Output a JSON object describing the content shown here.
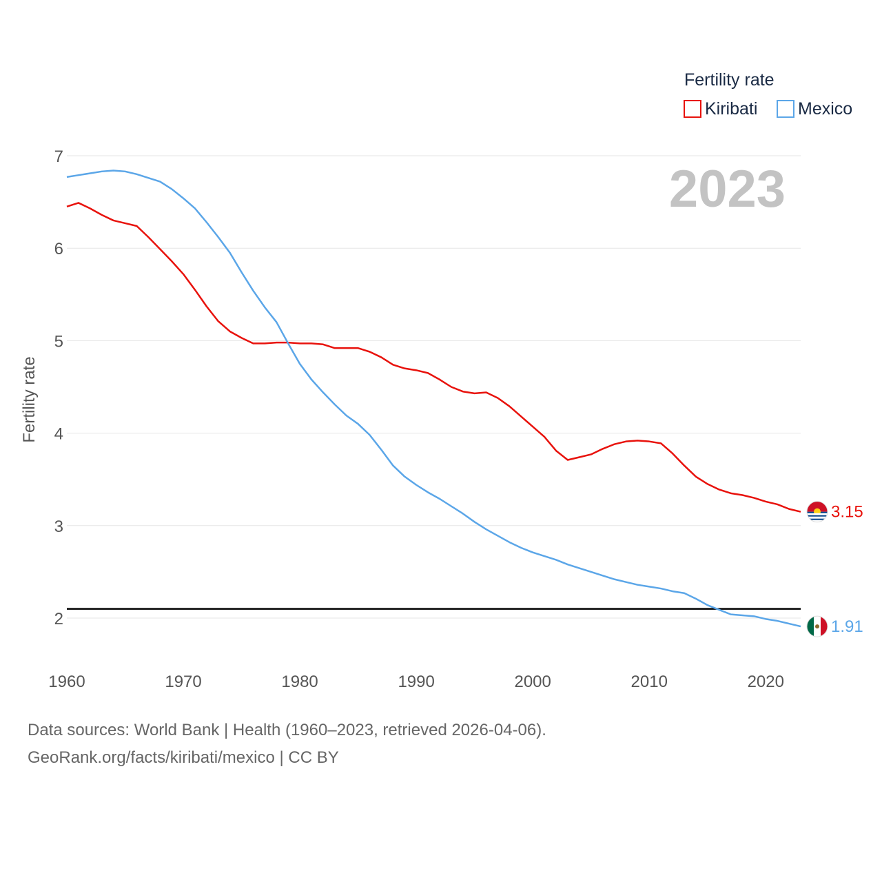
{
  "chart_data": {
    "type": "line",
    "title": "Fertility rate",
    "ylabel": "Fertility rate",
    "xlabel": "",
    "current_year_label": "2023",
    "xlim": [
      1960,
      2023
    ],
    "ylim": [
      1.5,
      7
    ],
    "x_ticks": [
      1960,
      1970,
      1980,
      1990,
      2000,
      2010,
      2020
    ],
    "y_ticks": [
      2,
      3,
      4,
      5,
      6,
      7
    ],
    "reference_line": {
      "value": 2.1
    },
    "x": [
      1960,
      1961,
      1962,
      1963,
      1964,
      1965,
      1966,
      1967,
      1968,
      1969,
      1970,
      1971,
      1972,
      1973,
      1974,
      1975,
      1976,
      1977,
      1978,
      1979,
      1980,
      1981,
      1982,
      1983,
      1984,
      1985,
      1986,
      1987,
      1988,
      1989,
      1990,
      1991,
      1992,
      1993,
      1994,
      1995,
      1996,
      1997,
      1998,
      1999,
      2000,
      2001,
      2002,
      2003,
      2004,
      2005,
      2006,
      2007,
      2008,
      2009,
      2010,
      2011,
      2012,
      2013,
      2014,
      2015,
      2016,
      2017,
      2018,
      2019,
      2020,
      2021,
      2022,
      2023
    ],
    "series": [
      {
        "name": "Kiribati",
        "color": "#e8120c",
        "end_label": "3.15",
        "flag_icon": "kiribati-flag-icon",
        "values": [
          6.45,
          6.49,
          6.43,
          6.36,
          6.3,
          6.27,
          6.24,
          6.12,
          5.99,
          5.86,
          5.72,
          5.55,
          5.37,
          5.21,
          5.1,
          5.03,
          4.97,
          4.97,
          4.98,
          4.98,
          4.97,
          4.97,
          4.96,
          4.92,
          4.92,
          4.92,
          4.88,
          4.82,
          4.74,
          4.7,
          4.68,
          4.65,
          4.58,
          4.5,
          4.45,
          4.43,
          4.44,
          4.38,
          4.29,
          4.18,
          4.07,
          3.96,
          3.81,
          3.71,
          3.74,
          3.77,
          3.83,
          3.88,
          3.91,
          3.92,
          3.91,
          3.89,
          3.78,
          3.65,
          3.53,
          3.45,
          3.39,
          3.35,
          3.33,
          3.3,
          3.26,
          3.23,
          3.18,
          3.15
        ]
      },
      {
        "name": "Mexico",
        "color": "#5ba6e8",
        "end_label": "1.91",
        "flag_icon": "mexico-flag-icon",
        "values": [
          6.77,
          6.79,
          6.81,
          6.83,
          6.84,
          6.83,
          6.8,
          6.76,
          6.72,
          6.64,
          6.54,
          6.43,
          6.28,
          6.12,
          5.95,
          5.74,
          5.54,
          5.36,
          5.2,
          4.97,
          4.75,
          4.58,
          4.44,
          4.31,
          4.19,
          4.1,
          3.98,
          3.82,
          3.65,
          3.53,
          3.44,
          3.36,
          3.29,
          3.21,
          3.13,
          3.04,
          2.96,
          2.89,
          2.82,
          2.76,
          2.71,
          2.67,
          2.63,
          2.58,
          2.54,
          2.5,
          2.46,
          2.42,
          2.39,
          2.36,
          2.34,
          2.32,
          2.29,
          2.27,
          2.21,
          2.14,
          2.09,
          2.04,
          2.03,
          2.02,
          1.99,
          1.97,
          1.94,
          1.91
        ]
      }
    ]
  },
  "legend": {
    "title": "Fertility rate",
    "items": [
      {
        "label": "Kiribati",
        "color": "#e8120c"
      },
      {
        "label": "Mexico",
        "color": "#5ba6e8"
      }
    ]
  },
  "footer": {
    "line1": "Data sources: World Bank | Health (1960–2023, retrieved 2026-04-06).",
    "line2": "GeoRank.org/facts/kiribati/mexico | CC BY"
  }
}
